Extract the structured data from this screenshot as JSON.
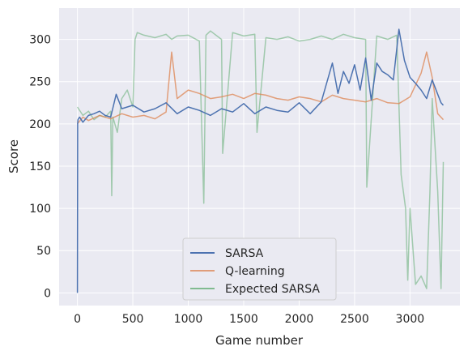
{
  "chart_data": {
    "type": "line",
    "title": "",
    "xlabel": "Game number",
    "ylabel": "Score",
    "xlim": [
      -165,
      3450
    ],
    "ylim": [
      -15,
      337
    ],
    "xticks": [
      0,
      500,
      1000,
      1500,
      2000,
      2500,
      3000
    ],
    "yticks": [
      0,
      50,
      100,
      150,
      200,
      250,
      300
    ],
    "grid": true,
    "background": "#eaeaf2",
    "legend": {
      "placement": "lower center",
      "entries": [
        "SARSA",
        "Q-learning",
        "Expected SARSA"
      ]
    },
    "series": [
      {
        "name": "SARSA",
        "color": "#4c72b0",
        "opacity": 1.0,
        "x": [
          0,
          2,
          5,
          20,
          50,
          100,
          150,
          200,
          250,
          300,
          350,
          400,
          500,
          600,
          700,
          800,
          900,
          1000,
          1100,
          1200,
          1300,
          1400,
          1500,
          1600,
          1700,
          1800,
          1900,
          2000,
          2100,
          2200,
          2300,
          2350,
          2400,
          2450,
          2500,
          2550,
          2600,
          2650,
          2700,
          2750,
          2800,
          2850,
          2900,
          2950,
          3000,
          3050,
          3100,
          3150,
          3200,
          3250,
          3280,
          3300
        ],
        "y": [
          0,
          200,
          205,
          208,
          202,
          210,
          212,
          215,
          210,
          208,
          235,
          218,
          222,
          214,
          218,
          225,
          212,
          220,
          216,
          210,
          218,
          214,
          224,
          212,
          220,
          216,
          214,
          225,
          212,
          226,
          272,
          236,
          262,
          248,
          270,
          240,
          278,
          228,
          272,
          262,
          258,
          252,
          312,
          275,
          255,
          248,
          240,
          230,
          252,
          235,
          225,
          222
        ]
      },
      {
        "name": "Q-learning",
        "color": "#dd8452",
        "opacity": 0.75,
        "x": [
          0,
          50,
          100,
          200,
          300,
          400,
          500,
          600,
          700,
          800,
          850,
          900,
          1000,
          1100,
          1200,
          1300,
          1400,
          1500,
          1600,
          1700,
          1800,
          1900,
          2000,
          2100,
          2200,
          2300,
          2400,
          2500,
          2600,
          2700,
          2800,
          2900,
          3000,
          3100,
          3150,
          3200,
          3250,
          3300
        ],
        "y": [
          200,
          208,
          204,
          210,
          206,
          212,
          208,
          210,
          206,
          214,
          285,
          230,
          240,
          236,
          230,
          232,
          235,
          230,
          236,
          234,
          230,
          228,
          232,
          230,
          226,
          234,
          230,
          228,
          226,
          230,
          225,
          224,
          232,
          260,
          285,
          255,
          212,
          205
        ]
      },
      {
        "name": "Expected SARSA",
        "color": "#55a868",
        "opacity": 0.5,
        "x": [
          0,
          50,
          100,
          150,
          200,
          250,
          300,
          310,
          320,
          360,
          400,
          450,
          500,
          520,
          540,
          600,
          700,
          800,
          850,
          900,
          1000,
          1100,
          1140,
          1160,
          1200,
          1300,
          1310,
          1400,
          1500,
          1600,
          1620,
          1700,
          1800,
          1900,
          2000,
          2100,
          2200,
          2300,
          2400,
          2500,
          2600,
          2610,
          2700,
          2800,
          2880,
          2920,
          2960,
          2980,
          3000,
          3050,
          3100,
          3150,
          3180,
          3200,
          3250,
          3280,
          3300
        ],
        "y": [
          220,
          210,
          215,
          205,
          210,
          208,
          215,
          115,
          208,
          190,
          230,
          240,
          220,
          300,
          308,
          305,
          302,
          306,
          300,
          304,
          305,
          298,
          106,
          305,
          310,
          300,
          165,
          308,
          304,
          306,
          190,
          302,
          300,
          303,
          298,
          300,
          304,
          300,
          306,
          302,
          300,
          125,
          304,
          300,
          305,
          140,
          100,
          15,
          100,
          10,
          20,
          5,
          120,
          230,
          120,
          5,
          155
        ]
      }
    ]
  }
}
